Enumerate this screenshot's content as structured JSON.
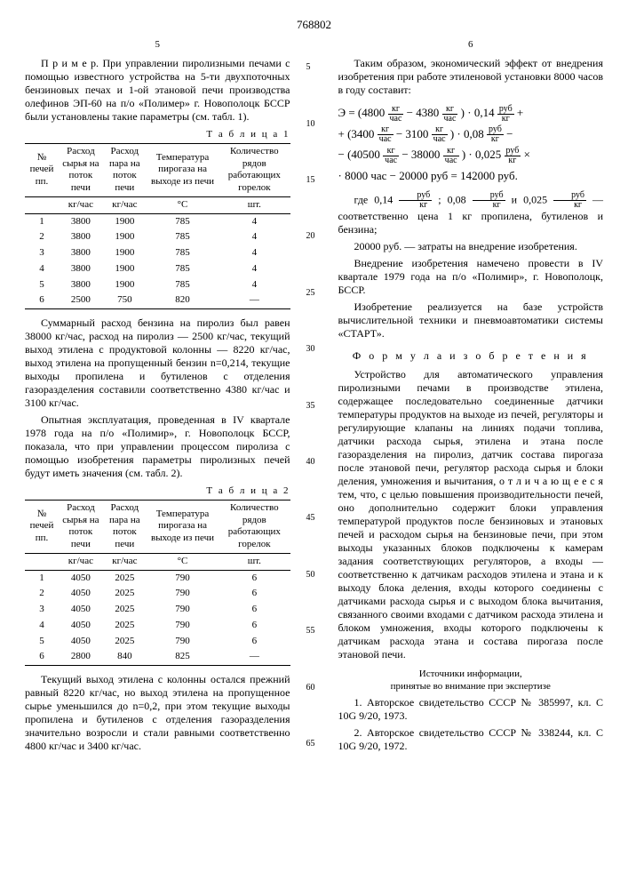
{
  "doc_number": "768802",
  "left_col_num": "5",
  "right_col_num": "6",
  "left": {
    "example_para": "П р и м е р. При управлении пиролизными печами с помощью известного устройства на 5-ти двухпоточных бензиновых печах и 1-ой этановой печи производства олефинов ЭП-60 на п/о «Полимер» г. Новополоцк БССР были установлены такие параметры (см. табл. 1).",
    "table1_caption": "Т а б л и ц а 1",
    "table_headers": {
      "c1a": "№ печей пп.",
      "c2a": "Расход сырья на поток печи",
      "c3a": "Расход пара на поток печи",
      "c4a": "Температура пирогаза на выходе из печи",
      "c5a": "Количество рядов работающих горелок",
      "u1": "",
      "u2": "кг/час",
      "u3": "кг/час",
      "u4": "°C",
      "u5": "шт."
    },
    "table1": [
      [
        "1",
        "3800",
        "1900",
        "785",
        "4"
      ],
      [
        "2",
        "3800",
        "1900",
        "785",
        "4"
      ],
      [
        "3",
        "3800",
        "1900",
        "785",
        "4"
      ],
      [
        "4",
        "3800",
        "1900",
        "785",
        "4"
      ],
      [
        "5",
        "3800",
        "1900",
        "785",
        "4"
      ],
      [
        "6",
        "2500",
        "750",
        "820",
        "—"
      ]
    ],
    "para2": "Суммарный расход бензина на пиролиз был равен 38000 кг/час, расход на пиролиз — 2500 кг/час, текущий выход этилена с продуктовой колонны — 8220 кг/час, выход этилена на пропущенный бензин n=0,214, текущие выходы пропилена и бутиленов с отделения газоразделения составили соответственно 4380 кг/час и 3100 кг/час.",
    "para3": "Опытная эксплуатация, проведенная в IV квартале 1978 года на п/о «Полимир», г. Новополоцк БССР, показала, что при управлении процессом пиролиза с помощью изобретения параметры пиролизных печей будут иметь значения (см. табл. 2).",
    "table2_caption": "Т а б л и ц а 2",
    "table2": [
      [
        "1",
        "4050",
        "2025",
        "790",
        "6"
      ],
      [
        "2",
        "4050",
        "2025",
        "790",
        "6"
      ],
      [
        "3",
        "4050",
        "2025",
        "790",
        "6"
      ],
      [
        "4",
        "4050",
        "2025",
        "790",
        "6"
      ],
      [
        "5",
        "4050",
        "2025",
        "790",
        "6"
      ],
      [
        "6",
        "2800",
        "840",
        "825",
        "—"
      ]
    ],
    "para4": "Текущий выход этилена с колонны остался прежний равный 8220 кг/час, но выход этилена на пропущенное сырье уменьшился до n=0,2, при этом текущие выходы пропилена и бутиленов с отделения газоразделения значительно возросли и стали равными соответственно 4800 кг/час и 3400 кг/час."
  },
  "right": {
    "para1": "Таким образом, экономический эффект от внедрения изобретения при работе этиленовой установки 8000 часов в году составит:",
    "formula": {
      "l1a": "Э = (4800",
      "l1b": " − 4380",
      "l1c": ") · 0,14",
      "l1d": " +",
      "l2a": "+ (3400",
      "l2b": " − 3100",
      "l2c": ") · 0,08",
      "l2d": " −",
      "l3a": "− (40500",
      "l3b": " − 38000",
      "l3c": ") · 0,025",
      "l3d": " ×",
      "l4": "· 8000 час − 20000 руб = 142000 руб."
    },
    "frac_kg_chas": {
      "num": "кг",
      "den": "час"
    },
    "frac_rub_kg": {
      "num": "руб",
      "den": "кг"
    },
    "para2a": "где 0,14",
    "para2b": "; 0,08",
    "para2c": " и 0,025",
    "para2d": " — соответственно цена 1 кг пропилена, бутиленов и бензина;",
    "para3": "20000 руб. — затраты на внедрение изобретения.",
    "para4": "Внедрение изобретения намечено провести в IV квартале 1979 года на п/о «Полимир», г. Новополоцк, БССР.",
    "para5": "Изобретение реализуется на базе устройств вычислительной техники и пневмоавтоматики системы «СТАРТ».",
    "claims_head": "Ф о р м у л а   и з о б р е т е н и я",
    "claims": "Устройство для автоматического управления пиролизными печами в производстве этилена, содержащее последовательно соединенные датчики температуры продуктов на выходе из печей, регуляторы и регулирующие клапаны на линиях подачи топлива, датчики расхода сырья, этилена и этана после газоразделения на пиролиз, датчик состава пирогаза после этановой печи, регулятор расхода сырья и блоки деления, умножения и вычитания, о т л и ч а ю щ е е с я тем, что, с целью повышения производительности печей, оно дополнительно содержит блоки управления температурой продуктов после бензиновых и этановых печей и расходом сырья на бензиновые печи, при этом выходы указанных блоков подключены к камерам задания соответствующих регуляторов, а входы — соответственно к датчикам расходов этилена и этана и к выходу блока деления, входы которого соединены с датчиками расхода сырья и с выходом блока вычитания, связанного своими входами с датчиком расхода этилена и блоком умножения, входы которого подключены к датчикам расхода этана и состава пирогаза после этановой печи.",
    "sources_head": "Источники информации,\nпринятые во внимание при экспертизе",
    "src1": "1. Авторское свидетельство СССР № 385997, кл. C 10G 9/20, 1973.",
    "src2": "2. Авторское свидетельство СССР № 338244, кл. C 10G 9/20, 1972."
  },
  "gutter": [
    "5",
    "10",
    "15",
    "20",
    "25",
    "30",
    "35",
    "40",
    "45",
    "50",
    "55",
    "60",
    "65"
  ]
}
